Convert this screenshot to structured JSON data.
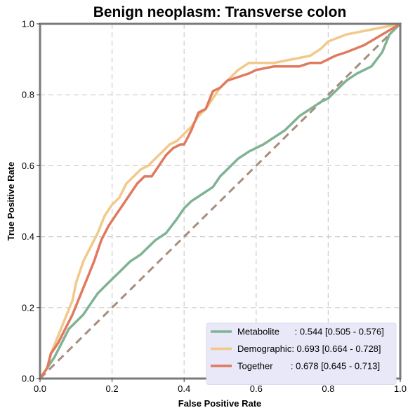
{
  "chart_data": {
    "type": "line",
    "title": "Benign neoplasm: Transverse colon",
    "xlabel": "False Positive Rate",
    "ylabel": "True Positive Rate",
    "xlim": [
      0,
      1
    ],
    "ylim": [
      0,
      1
    ],
    "xticks": [
      "0.0",
      "0.2",
      "0.4",
      "0.6",
      "0.8",
      "1.0"
    ],
    "yticks": [
      "0.0",
      "0.2",
      "0.4",
      "0.6",
      "0.8",
      "1.0"
    ],
    "grid": true,
    "legend_position": "bottom-right",
    "diagonal": {
      "x": [
        0,
        1
      ],
      "y": [
        0,
        1
      ],
      "color": "#a88c7d",
      "style": "dashed"
    },
    "series": [
      {
        "name": "Metabolite",
        "legend_label": "Metabolite      : 0.544 [0.505 - 0.576]",
        "color": "#7fb394",
        "x": [
          0,
          0.02,
          0.04,
          0.06,
          0.08,
          0.1,
          0.12,
          0.14,
          0.16,
          0.18,
          0.2,
          0.22,
          0.25,
          0.28,
          0.3,
          0.32,
          0.35,
          0.38,
          0.4,
          0.42,
          0.45,
          0.48,
          0.5,
          0.52,
          0.55,
          0.58,
          0.6,
          0.62,
          0.65,
          0.68,
          0.7,
          0.72,
          0.75,
          0.78,
          0.8,
          0.82,
          0.85,
          0.88,
          0.9,
          0.92,
          0.95,
          0.97,
          1.0
        ],
        "y": [
          0,
          0.03,
          0.06,
          0.1,
          0.14,
          0.16,
          0.18,
          0.21,
          0.24,
          0.26,
          0.28,
          0.3,
          0.33,
          0.35,
          0.37,
          0.39,
          0.41,
          0.45,
          0.48,
          0.5,
          0.52,
          0.54,
          0.57,
          0.59,
          0.62,
          0.64,
          0.65,
          0.66,
          0.68,
          0.7,
          0.72,
          0.74,
          0.76,
          0.78,
          0.79,
          0.81,
          0.84,
          0.86,
          0.87,
          0.88,
          0.92,
          0.97,
          1.0
        ]
      },
      {
        "name": "Demographic",
        "legend_label": "Demographic: 0.693 [0.664 - 0.728]",
        "color": "#f2c98a",
        "x": [
          0,
          0.02,
          0.03,
          0.05,
          0.07,
          0.09,
          0.1,
          0.12,
          0.14,
          0.16,
          0.18,
          0.2,
          0.22,
          0.24,
          0.26,
          0.28,
          0.3,
          0.32,
          0.34,
          0.36,
          0.38,
          0.4,
          0.42,
          0.44,
          0.46,
          0.48,
          0.5,
          0.52,
          0.55,
          0.58,
          0.6,
          0.65,
          0.7,
          0.75,
          0.78,
          0.8,
          0.85,
          0.9,
          0.95,
          1.0
        ],
        "y": [
          0,
          0.03,
          0.07,
          0.12,
          0.17,
          0.22,
          0.27,
          0.33,
          0.37,
          0.41,
          0.46,
          0.49,
          0.51,
          0.55,
          0.57,
          0.59,
          0.6,
          0.62,
          0.64,
          0.66,
          0.67,
          0.69,
          0.71,
          0.74,
          0.76,
          0.79,
          0.82,
          0.84,
          0.87,
          0.89,
          0.89,
          0.89,
          0.9,
          0.91,
          0.93,
          0.95,
          0.97,
          0.98,
          0.99,
          1.0
        ]
      },
      {
        "name": "Together",
        "legend_label": "Together       : 0.678 [0.645 - 0.713]",
        "color": "#e07a5f",
        "x": [
          0,
          0.02,
          0.03,
          0.05,
          0.07,
          0.09,
          0.11,
          0.13,
          0.15,
          0.17,
          0.19,
          0.21,
          0.23,
          0.25,
          0.27,
          0.29,
          0.31,
          0.33,
          0.35,
          0.37,
          0.39,
          0.4,
          0.42,
          0.44,
          0.46,
          0.48,
          0.5,
          0.52,
          0.55,
          0.58,
          0.6,
          0.65,
          0.7,
          0.72,
          0.75,
          0.78,
          0.8,
          0.82,
          0.85,
          0.9,
          0.95,
          1.0
        ],
        "y": [
          0,
          0.03,
          0.07,
          0.1,
          0.14,
          0.18,
          0.23,
          0.28,
          0.33,
          0.39,
          0.43,
          0.46,
          0.49,
          0.52,
          0.55,
          0.57,
          0.57,
          0.6,
          0.63,
          0.65,
          0.66,
          0.66,
          0.7,
          0.75,
          0.76,
          0.81,
          0.82,
          0.84,
          0.85,
          0.86,
          0.87,
          0.88,
          0.88,
          0.88,
          0.89,
          0.89,
          0.9,
          0.91,
          0.92,
          0.94,
          0.97,
          1.0
        ]
      }
    ]
  }
}
